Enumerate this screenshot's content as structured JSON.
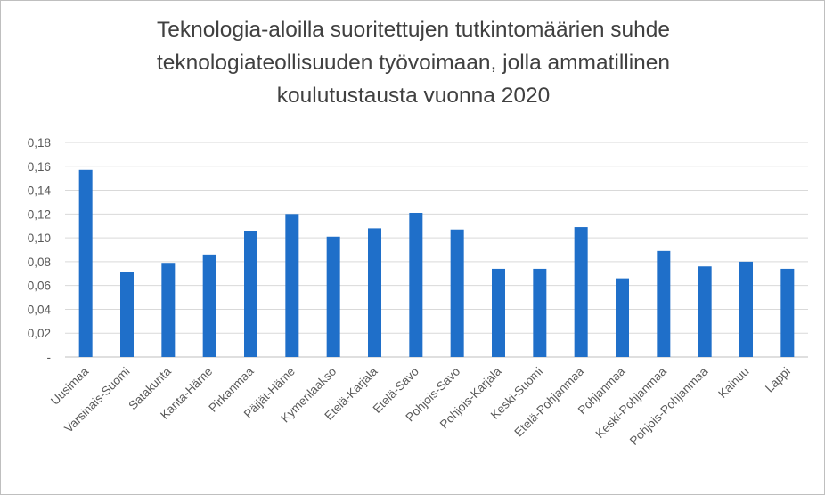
{
  "chart_data": {
    "type": "bar",
    "title_lines": [
      "Teknologia-aloilla suoritettujen tutkintomäärien suhde",
      "teknologiateollisuuden työvoimaan, jolla ammatillinen",
      "koulutustausta vuonna 2020"
    ],
    "categories": [
      "Uusimaa",
      "Varsinais-Suomi",
      "Satakunta",
      "Kanta-Häme",
      "Pirkanmaa",
      "Päijät-Häme",
      "Kymenlaakso",
      "Etelä-Karjala",
      "Etelä-Savo",
      "Pohjois-Savo",
      "Pohjois-Karjala",
      "Keski-Suomi",
      "Etelä-Pohjanmaa",
      "Pohjanmaa",
      "Keski-Pohjanmaa",
      "Pohjois-Pohjanmaa",
      "Kainuu",
      "Lappi"
    ],
    "values": [
      0.157,
      0.071,
      0.079,
      0.086,
      0.106,
      0.12,
      0.101,
      0.108,
      0.121,
      0.107,
      0.074,
      0.074,
      0.109,
      0.066,
      0.089,
      0.076,
      0.08,
      0.074
    ],
    "ylim": [
      0,
      0.18
    ],
    "yticks": [
      "-",
      "0,02",
      "0,04",
      "0,06",
      "0,08",
      "0,10",
      "0,12",
      "0,14",
      "0,16",
      "0,18"
    ],
    "grid": true,
    "legend": "none",
    "bar_color": "#1f6fc9",
    "xlabel": "",
    "ylabel": ""
  }
}
